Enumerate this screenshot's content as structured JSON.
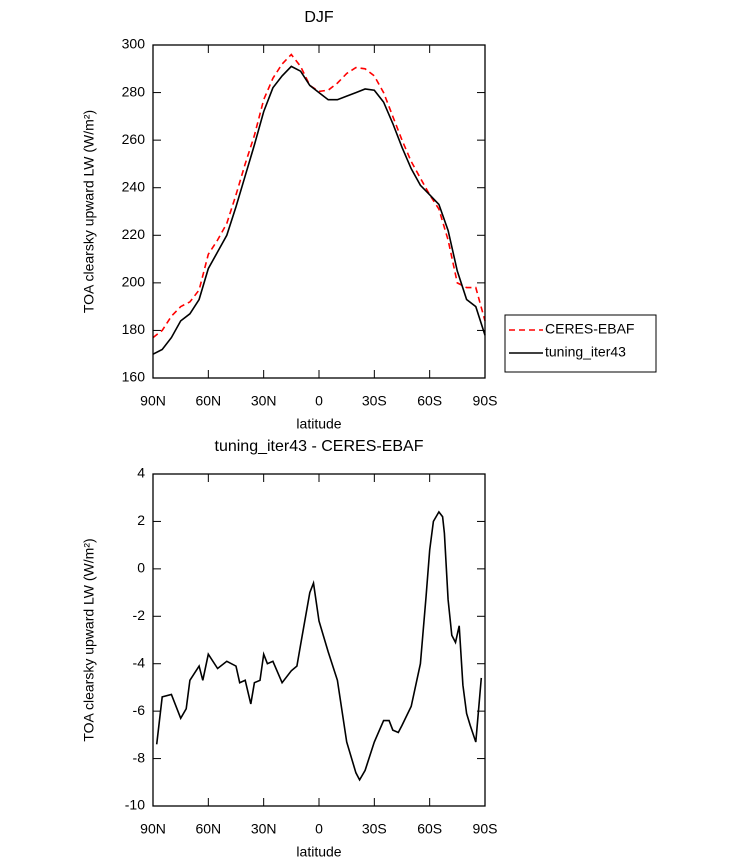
{
  "chart_data": [
    {
      "type": "line",
      "title": "DJF",
      "x_label": "latitude",
      "y_label": "TOA clearsky upward LW (W/m²)",
      "x": [
        90,
        85,
        80,
        75,
        70,
        65,
        60,
        55,
        50,
        45,
        40,
        35,
        30,
        25,
        20,
        15,
        10,
        5,
        0,
        -5,
        -10,
        -15,
        -20,
        -25,
        -30,
        -35,
        -40,
        -45,
        -50,
        -55,
        -60,
        -65,
        -70,
        -75,
        -80,
        -85,
        -90
      ],
      "series": [
        {
          "name": "CERES-EBAF",
          "color": "#ff0000",
          "line_style": "dashed",
          "values": [
            177,
            180,
            186,
            190,
            192,
            197,
            212,
            218,
            225,
            237,
            250,
            262,
            277,
            286,
            292,
            296,
            291,
            283,
            280.5,
            281,
            284,
            288,
            290.5,
            290,
            287,
            280,
            270,
            260,
            251,
            244,
            237,
            231,
            218,
            200,
            198,
            198,
            184
          ]
        },
        {
          "name": "tuning_iter43",
          "color": "#000000",
          "line_style": "solid",
          "values": [
            170,
            172,
            177,
            184,
            187,
            193,
            206,
            213,
            220,
            232,
            245,
            258,
            272,
            282,
            287,
            291,
            289,
            283,
            280,
            277,
            277,
            278.5,
            280,
            281.5,
            281,
            276,
            267,
            257,
            248,
            241,
            237,
            233,
            222,
            205,
            193,
            190,
            178
          ]
        }
      ],
      "xlim": [
        90,
        -90
      ],
      "xticks": [
        {
          "value": 90,
          "label": "90N"
        },
        {
          "value": 60,
          "label": "60N"
        },
        {
          "value": 30,
          "label": "30N"
        },
        0,
        {
          "value": -30,
          "label": "30S"
        },
        {
          "value": -60,
          "label": "60S"
        },
        {
          "value": -90,
          "label": "90S"
        }
      ],
      "ylim": [
        160,
        300
      ],
      "yticks": [
        160,
        180,
        200,
        220,
        240,
        260,
        280,
        300
      ],
      "legend": "right"
    },
    {
      "type": "line",
      "title": "tuning_iter43 - CERES-EBAF",
      "x_label": "latitude",
      "y_label": "TOA clearsky upward LW (W/m²)",
      "x": [
        88,
        85,
        80,
        75,
        72,
        70,
        65,
        63,
        60,
        55,
        50,
        45,
        43,
        40,
        37,
        35,
        32,
        30,
        28,
        25,
        20,
        15,
        12,
        10,
        5,
        3,
        0,
        -5,
        -10,
        -15,
        -20,
        -22,
        -25,
        -30,
        -35,
        -38,
        -40,
        -43,
        -45,
        -50,
        -55,
        -58,
        -60,
        -62,
        -65,
        -67,
        -68,
        -70,
        -72,
        -74,
        -76,
        -78,
        -80,
        -82,
        -85,
        -88
      ],
      "values": [
        -7.4,
        -5.4,
        -5.3,
        -6.3,
        -5.9,
        -4.7,
        -4.1,
        -4.7,
        -3.6,
        -4.2,
        -3.9,
        -4.1,
        -4.8,
        -4.7,
        -5.7,
        -4.8,
        -4.7,
        -3.6,
        -4.0,
        -3.9,
        -4.8,
        -4.3,
        -4.1,
        -3.2,
        -1.0,
        -0.6,
        -2.2,
        -3.5,
        -4.7,
        -7.3,
        -8.6,
        -8.9,
        -8.5,
        -7.3,
        -6.4,
        -6.4,
        -6.8,
        -6.9,
        -6.6,
        -5.8,
        -4.0,
        -1.2,
        0.8,
        2.0,
        2.4,
        2.2,
        1.5,
        -1.3,
        -2.8,
        -3.1,
        -2.4,
        -4.9,
        -6.1,
        -6.6,
        -7.3,
        -4.6
      ],
      "color": "#000000",
      "xlim": [
        90,
        -90
      ],
      "xticks": [
        {
          "value": 90,
          "label": "90N"
        },
        {
          "value": 60,
          "label": "60N"
        },
        {
          "value": 30,
          "label": "30N"
        },
        0,
        {
          "value": -30,
          "label": "30S"
        },
        {
          "value": -60,
          "label": "60S"
        },
        {
          "value": -90,
          "label": "90S"
        }
      ],
      "ylim": [
        -10,
        4
      ],
      "yticks": [
        -10,
        -8,
        -6,
        -4,
        -2,
        0,
        2,
        4
      ]
    }
  ]
}
